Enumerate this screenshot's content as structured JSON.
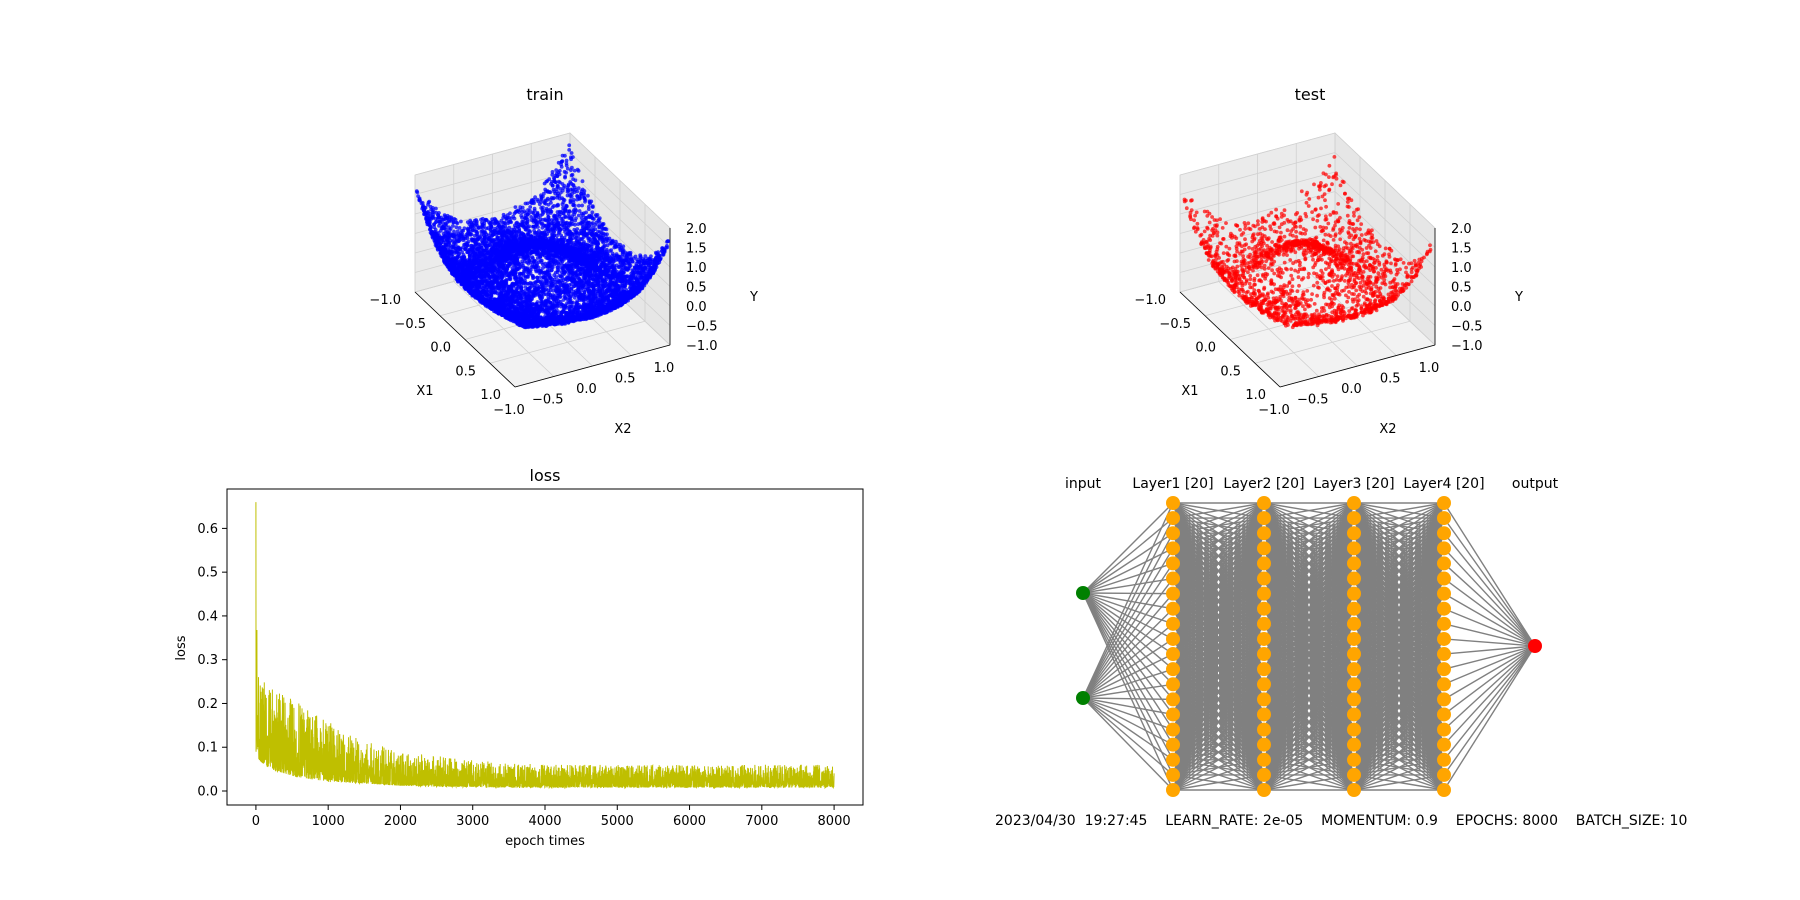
{
  "chart_data": [
    {
      "type": "scatter",
      "projection": "3d",
      "title": "train",
      "xlabel": "X1",
      "ylabel": "X2",
      "zlabel": "Y",
      "xlim": [
        -1.0,
        1.0
      ],
      "ylim": [
        -1.0,
        1.0
      ],
      "zlim": [
        -1.0,
        2.0
      ],
      "xticks": [
        "−1.0",
        "−0.5",
        "0.0",
        "0.5",
        "1.0"
      ],
      "yticks": [
        "−1.0",
        "−0.5",
        "0.0",
        "0.5",
        "1.0"
      ],
      "zticks": [
        "−1.0",
        "−0.5",
        "0.0",
        "0.5",
        "1.0",
        "1.5",
        "2.0"
      ],
      "color": "#0000ff",
      "point_count": 8000,
      "surface": "rings rising toward the corners (y in about -0.6 to 1.9)"
    },
    {
      "type": "scatter",
      "projection": "3d",
      "title": "test",
      "xlabel": "X1",
      "ylabel": "X2",
      "zlabel": "Y",
      "xlim": [
        -1.0,
        1.0
      ],
      "ylim": [
        -1.0,
        1.0
      ],
      "zlim": [
        -1.0,
        2.0
      ],
      "xticks": [
        "−1.0",
        "−0.5",
        "0.0",
        "0.5",
        "1.0"
      ],
      "yticks": [
        "−1.0",
        "−0.5",
        "0.0",
        "0.5",
        "1.0"
      ],
      "zticks": [
        "−1.0",
        "−0.5",
        "0.0",
        "0.5",
        "1.0",
        "1.5",
        "2.0"
      ],
      "color": "#ff0000",
      "point_count": 2000,
      "surface": "same ring surface, sparser sampling"
    },
    {
      "type": "line",
      "title": "loss",
      "xlabel": "epoch times",
      "ylabel": "loss",
      "xlim": [
        -400,
        8400
      ],
      "ylim": [
        -0.032,
        0.69
      ],
      "xticks": [
        0,
        1000,
        2000,
        3000,
        4000,
        5000,
        6000,
        7000,
        8000
      ],
      "yticks": [
        0.0,
        0.1,
        0.2,
        0.3,
        0.4,
        0.5,
        0.6
      ],
      "color": "#bfbf00",
      "series": [
        {
          "x": [
            0,
            20,
            50,
            100,
            200,
            300,
            400,
            500,
            600,
            700,
            800,
            900,
            1000,
            1200,
            1400,
            1600,
            1800,
            2000,
            2500,
            3000,
            3500,
            4000,
            5000,
            6000,
            7000,
            8000
          ],
          "envelope_low": [
            0.09,
            0.08,
            0.07,
            0.06,
            0.05,
            0.045,
            0.04,
            0.035,
            0.03,
            0.028,
            0.026,
            0.024,
            0.022,
            0.02,
            0.018,
            0.016,
            0.014,
            0.012,
            0.01,
            0.009,
            0.008,
            0.008,
            0.008,
            0.008,
            0.008,
            0.008
          ],
          "envelope_high": [
            0.66,
            0.28,
            0.26,
            0.25,
            0.24,
            0.23,
            0.22,
            0.21,
            0.2,
            0.19,
            0.18,
            0.17,
            0.16,
            0.14,
            0.12,
            0.11,
            0.1,
            0.09,
            0.08,
            0.07,
            0.065,
            0.06,
            0.06,
            0.06,
            0.06,
            0.06
          ]
        }
      ]
    },
    {
      "type": "network-diagram",
      "layers": [
        {
          "label": "input",
          "nodes": 2,
          "color": "#008000"
        },
        {
          "label": "Layer1 [20]",
          "nodes": 20,
          "color": "#ffa500"
        },
        {
          "label": "Layer2 [20]",
          "nodes": 20,
          "color": "#ffa500"
        },
        {
          "label": "Layer3 [20]",
          "nodes": 20,
          "color": "#ffa500"
        },
        {
          "label": "Layer4 [20]",
          "nodes": 20,
          "color": "#ffa500"
        },
        {
          "label": "output",
          "nodes": 1,
          "color": "#ff0000"
        }
      ],
      "edge_color": "#808080",
      "footer": "2023/04/30  19:27:45    LEARN_RATE: 2e-05    MOMENTUM: 0.9    EPOCHS: 8000    BATCH_SIZE: 10"
    }
  ]
}
